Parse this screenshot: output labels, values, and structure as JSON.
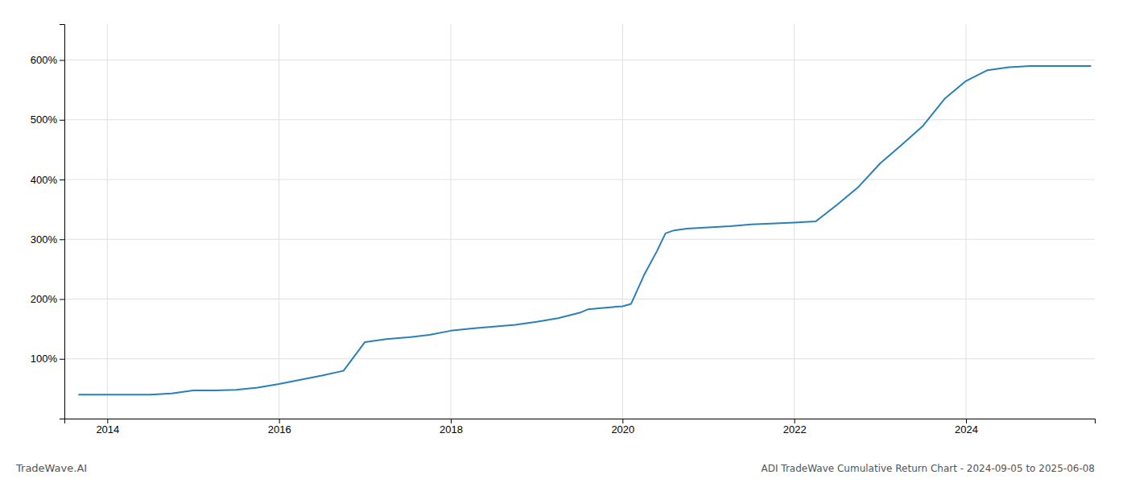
{
  "chart_data": {
    "type": "line",
    "title": "ADI TradeWave Cumulative Return Chart - 2024-09-05 to 2025-06-08",
    "annotations": [
      "TradeWave.AI"
    ],
    "x": [
      2013.67,
      2014.0,
      2014.25,
      2014.5,
      2014.75,
      2015.0,
      2015.25,
      2015.5,
      2015.75,
      2016.0,
      2016.25,
      2016.5,
      2016.75,
      2017.0,
      2017.25,
      2017.5,
      2017.75,
      2018.0,
      2018.25,
      2018.5,
      2018.75,
      2019.0,
      2019.25,
      2019.5,
      2019.6,
      2019.75,
      2020.0,
      2020.1,
      2020.25,
      2020.4,
      2020.5,
      2020.6,
      2020.75,
      2021.0,
      2021.25,
      2021.5,
      2022.0,
      2022.25,
      2022.5,
      2022.75,
      2023.0,
      2023.25,
      2023.5,
      2023.75,
      2024.0,
      2024.25,
      2024.5,
      2024.75,
      2025.0,
      2025.45
    ],
    "values": [
      40,
      40,
      40,
      40,
      42,
      47,
      47,
      48,
      52,
      58,
      65,
      72,
      80,
      128,
      133,
      136,
      140,
      147,
      151,
      154,
      157,
      162,
      168,
      177,
      183,
      185,
      188,
      192,
      240,
      280,
      310,
      315,
      318,
      320,
      322,
      325,
      328,
      330,
      358,
      388,
      427,
      458,
      490,
      535,
      565,
      583,
      588,
      590,
      590,
      590
    ],
    "color": "#2980b9",
    "xlim": [
      2013.5,
      2025.5
    ],
    "ylim": [
      0,
      660
    ],
    "xticks": [
      2014,
      2016,
      2018,
      2020,
      2022,
      2024
    ],
    "yticks": [
      {
        "value": 100,
        "label": "100%"
      },
      {
        "value": 200,
        "label": "200%"
      },
      {
        "value": 300,
        "label": "300%"
      },
      {
        "value": 400,
        "label": "400%"
      },
      {
        "value": 500,
        "label": "500%"
      },
      {
        "value": 600,
        "label": "600%"
      }
    ],
    "grid": true
  }
}
